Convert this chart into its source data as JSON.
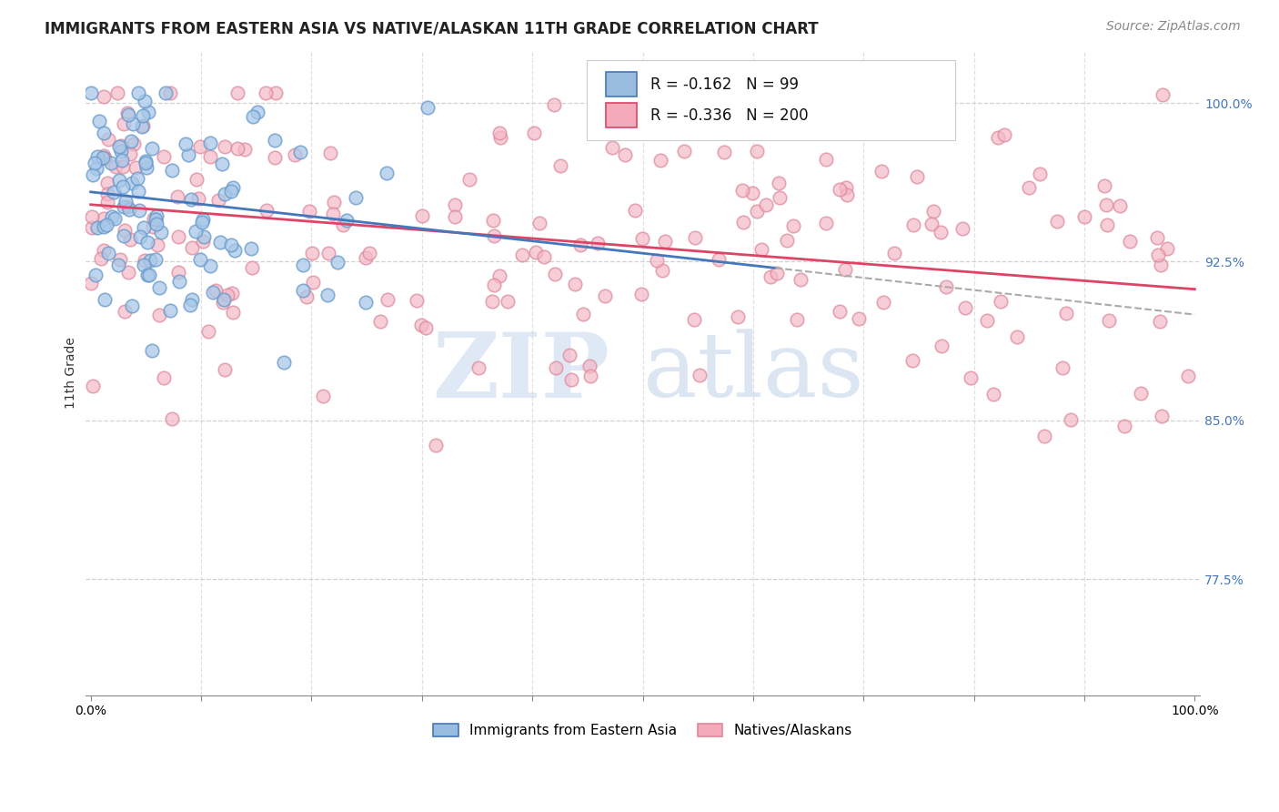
{
  "title": "IMMIGRANTS FROM EASTERN ASIA VS NATIVE/ALASKAN 11TH GRADE CORRELATION CHART",
  "source": "Source: ZipAtlas.com",
  "ylabel": "11th Grade",
  "ytick_labels": [
    "100.0%",
    "92.5%",
    "85.0%",
    "77.5%"
  ],
  "ytick_values": [
    1.0,
    0.925,
    0.85,
    0.775
  ],
  "xlim": [
    0.0,
    1.0
  ],
  "ylim": [
    0.72,
    1.025
  ],
  "blue_R": "-0.162",
  "blue_N": "99",
  "pink_R": "-0.336",
  "pink_N": "200",
  "blue_scatter_color": "#a8c8e8",
  "blue_edge_color": "#6699cc",
  "pink_scatter_color": "#f4b8c8",
  "pink_edge_color": "#dd8899",
  "blue_line_color": "#4477bb",
  "pink_line_color": "#dd4466",
  "dashed_line_color": "#aaaaaa",
  "legend_blue_face": "#99bbdd",
  "legend_pink_face": "#f4aabb",
  "background_color": "#ffffff",
  "grid_color": "#cccccc",
  "watermark_zip": "ZIP",
  "watermark_atlas": "atlas",
  "watermark_zip_color": "#c8d8ee",
  "watermark_atlas_color": "#b8cce0",
  "title_fontsize": 12,
  "axis_label_fontsize": 10,
  "tick_label_fontsize": 10,
  "legend_fontsize": 12,
  "source_fontsize": 10,
  "blue_trend_x0": 0.0,
  "blue_trend_y0": 0.958,
  "blue_trend_x1": 1.0,
  "blue_trend_y1": 0.9,
  "pink_trend_x0": 0.0,
  "pink_trend_y0": 0.952,
  "pink_trend_x1": 1.0,
  "pink_trend_y1": 0.912
}
